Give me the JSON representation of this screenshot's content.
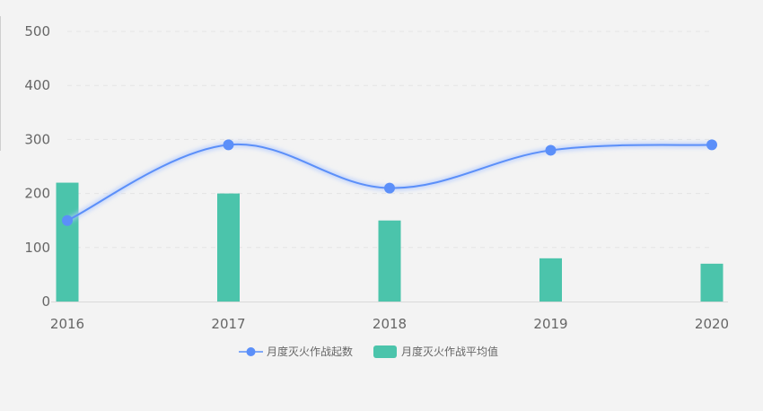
{
  "chart_data": {
    "type": "bar",
    "categories": [
      "2016",
      "2017",
      "2018",
      "2019",
      "2020"
    ],
    "ylim": [
      0,
      500
    ],
    "yticks": [
      0,
      100,
      200,
      300,
      400,
      500
    ],
    "grid": true,
    "legend_position": "bottom",
    "series": [
      {
        "name": "月度灭火作战起数",
        "type": "line",
        "smooth": true,
        "values": [
          150,
          290,
          210,
          280,
          290
        ],
        "color": "#5b8ff9"
      },
      {
        "name": "月度灭火作战平均值",
        "type": "bar",
        "values": [
          220,
          200,
          150,
          80,
          70
        ],
        "color": "#4bc4ab"
      }
    ]
  }
}
